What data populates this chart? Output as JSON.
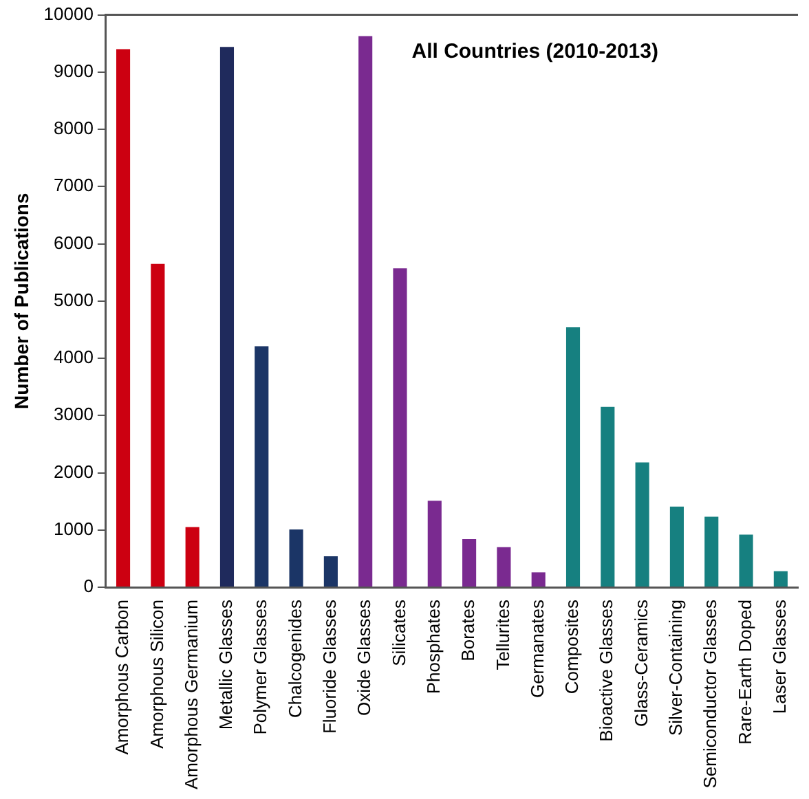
{
  "chart_data": {
    "type": "bar",
    "title": "All Countries (2010-2013)",
    "ylabel": "Number of Publications",
    "categories": [
      "Amorphous Carbon",
      "Amorphous Silicon",
      "Amorphous Germanium",
      "Metallic Glasses",
      "Polymer Glasses",
      "Chalcogenides",
      "Fluoride Glasses",
      "Oxide Glasses",
      "Silicates",
      "Phosphates",
      "Borates",
      "Tellurites",
      "Germanates",
      "Composites",
      "Bioactive Glasses",
      "Glass-Ceramics",
      "Silver-Containing",
      "Semiconductor Glasses",
      "Rare-Earth Doped",
      "Laser Glasses"
    ],
    "values": [
      9400,
      5650,
      1050,
      9440,
      4210,
      1010,
      540,
      9630,
      5570,
      1510,
      840,
      700,
      260,
      4540,
      3150,
      2180,
      1410,
      1230,
      920,
      280
    ],
    "colors": [
      "#cc0011",
      "#cc0011",
      "#cc0011",
      "#1f2a5c",
      "#1b3566",
      "#1b3566",
      "#1b3566",
      "#7a2a90",
      "#7a2a90",
      "#7a2a90",
      "#7a2a90",
      "#7a2a90",
      "#7a2a90",
      "#168080",
      "#168080",
      "#168080",
      "#168080",
      "#168080",
      "#168080",
      "#168080"
    ],
    "ylim": [
      0,
      10000
    ],
    "yticks": [
      0,
      1000,
      2000,
      3000,
      4000,
      5000,
      6000,
      7000,
      8000,
      9000,
      10000
    ],
    "grid": false,
    "legend": false
  }
}
